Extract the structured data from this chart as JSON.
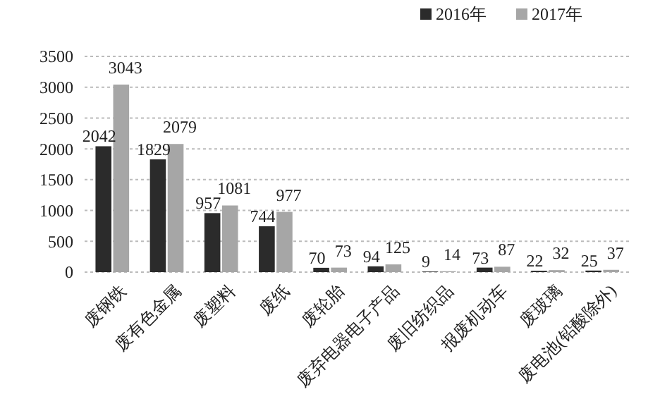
{
  "chart_data": {
    "type": "bar",
    "categories": [
      "废钢铁",
      "废有色金属",
      "废塑料",
      "废纸",
      "废轮胎",
      "废弃电器电子产品",
      "废旧纺织品",
      "报废机动车",
      "废玻璃",
      "废电池(铅酸除外)"
    ],
    "series": [
      {
        "name": "2016年",
        "color": "#2b2b2b",
        "values": [
          2042,
          1829,
          957,
          744,
          70,
          94,
          9,
          73,
          22,
          25
        ]
      },
      {
        "name": "2017年",
        "color": "#a6a6a6",
        "values": [
          3043,
          2079,
          1081,
          977,
          73,
          125,
          14,
          87,
          32,
          37
        ]
      }
    ],
    "ylim": [
      0,
      3500
    ],
    "yticks": [
      0,
      500,
      1000,
      1500,
      2000,
      2500,
      3000,
      3500
    ],
    "grid": "y",
    "legend": "top right",
    "data_labels": true
  }
}
